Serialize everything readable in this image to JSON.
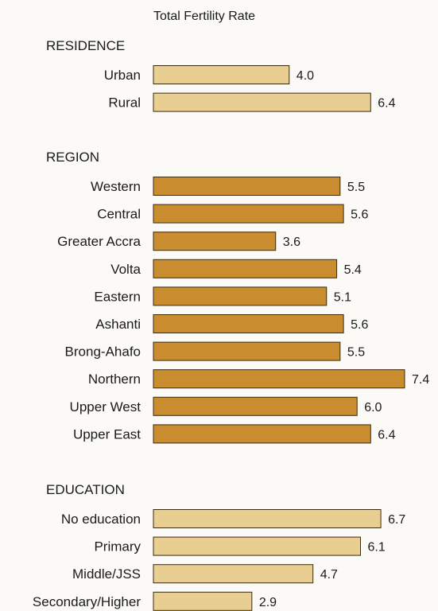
{
  "chart_data": {
    "type": "bar",
    "orientation": "horizontal",
    "title": "Total Fertility Rate",
    "xlim": [
      0,
      8
    ],
    "grid": false,
    "colors": {
      "light": "#e8cf91",
      "dark": "#c98c2e"
    },
    "groups": [
      {
        "name": "RESIDENCE",
        "color": "light",
        "categories": [
          "Urban",
          "Rural"
        ],
        "values": [
          4.0,
          6.4
        ],
        "value_labels": [
          "4.0",
          "6.4"
        ]
      },
      {
        "name": "REGION",
        "color": "dark",
        "categories": [
          "Western",
          "Central",
          "Greater Accra",
          "Volta",
          "Eastern",
          "Ashanti",
          "Brong-Ahafo",
          "Northern",
          "Upper West",
          "Upper East"
        ],
        "values": [
          5.5,
          5.6,
          3.6,
          5.4,
          5.1,
          5.6,
          5.5,
          7.4,
          6.0,
          6.4
        ],
        "value_labels": [
          "5.5",
          "5.6",
          "3.6",
          "5.4",
          "5.1",
          "5.6",
          "5.5",
          "7.4",
          "6.0",
          "6.4"
        ]
      },
      {
        "name": "EDUCATION",
        "color": "light",
        "categories": [
          "No education",
          "Primary",
          "Middle/JSS",
          "Secondary/Higher"
        ],
        "values": [
          6.7,
          6.1,
          4.7,
          2.9
        ],
        "value_labels": [
          "6.7",
          "6.1",
          "4.7",
          "2.9"
        ]
      }
    ]
  }
}
